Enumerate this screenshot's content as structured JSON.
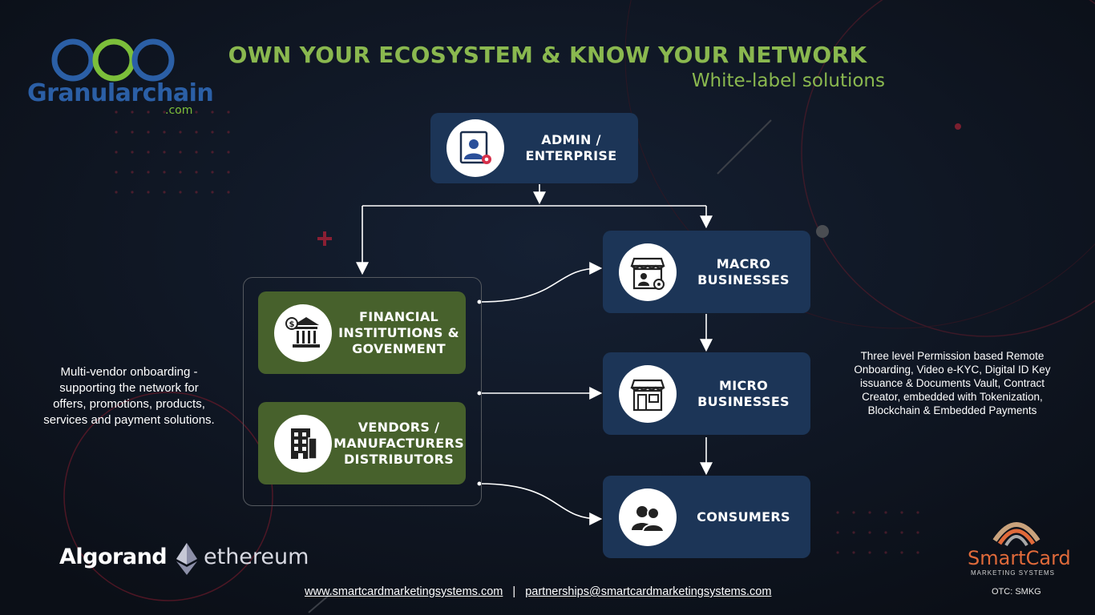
{
  "header": {
    "title": "OWN YOUR ECOSYSTEM & KNOW YOUR NETWORK",
    "subtitle": "White-label solutions"
  },
  "logo": {
    "brand": "Granularchain",
    "suffix": ".com"
  },
  "nodes": {
    "admin": {
      "label_line1": "ADMIN /",
      "label_line2": "ENTERPRISE",
      "icon": "admin-user-gear-icon"
    },
    "financial": {
      "label_line1": "FINANCIAL",
      "label_line2": "INSTITUTIONS &",
      "label_line3": "GOVENMENT",
      "icon": "bank-icon"
    },
    "vendors": {
      "label_line1": "VENDORS /",
      "label_line2": "MANUFACTURERS",
      "label_line3": "DISTRIBUTORS",
      "icon": "building-icon"
    },
    "macro": {
      "label_line1": "MACRO",
      "label_line2": "BUSINESSES",
      "icon": "store-gear-icon"
    },
    "micro": {
      "label_line1": "MICRO",
      "label_line2": "BUSINESSES",
      "icon": "shop-icon"
    },
    "consumers": {
      "label_line1": "CONSUMERS",
      "icon": "people-icon"
    }
  },
  "left_text": {
    "line1": "Multi-vendor onboarding -",
    "line2": "supporting the network for",
    "line3": "offers, promotions, products,",
    "line4": "services and payment solutions."
  },
  "right_text": {
    "line1": "Three level Permission based Remote",
    "line2": "Onboarding, Video e-KYC, Digital ID Key",
    "line3": "issuance & Documents Vault, Contract",
    "line4": "Creator, embedded with Tokenization,",
    "line5": "Blockchain & Embedded Payments"
  },
  "partners": {
    "algorand": "Algorand",
    "ethereum": "ethereum"
  },
  "smartcard": {
    "name": "SmartCard",
    "tagline": "MARKETING SYSTEMS"
  },
  "footer": {
    "website": "www.smartcardmarketingsystems.com",
    "separator": "|",
    "email": "partnerships@smartcardmarketingsystems.com",
    "otc": "OTC: SMKG"
  },
  "colors": {
    "background": "#0b0f17",
    "accent_green": "#8ab84f",
    "node_blue": "#1c3557",
    "node_green": "#47612c"
  }
}
